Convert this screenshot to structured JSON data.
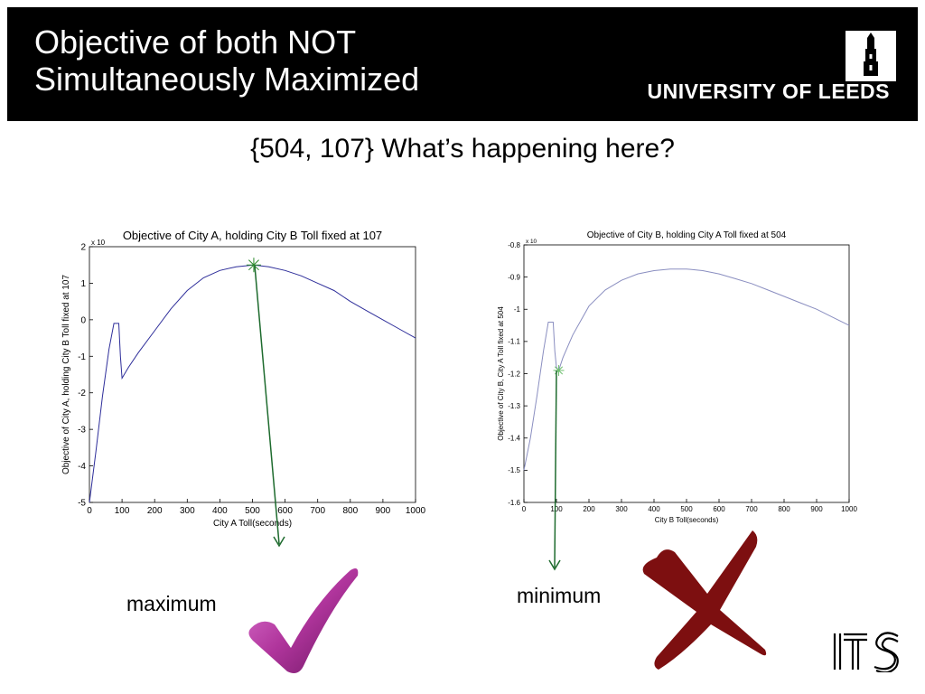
{
  "slide": {
    "title_line1": "Objective of both NOT",
    "title_line2": "Simultaneously Maximized",
    "logo_text": "UNIVERSITY OF LEEDS",
    "subtitle": "{504, 107} What’s happening here?",
    "label_left": "maximum",
    "label_right": "minimum",
    "its_logo": "ITS",
    "accent_arrow_color": "#1e6b2e",
    "check_color": "#b0359c",
    "cross_color": "#7d0f10"
  },
  "chart_data": [
    {
      "type": "line",
      "title": "Objective of City A, holding City B Toll fixed at 107",
      "xlabel": "City A Toll(seconds)",
      "ylabel": "Objective of City A, holding City B Toll fixed at 107",
      "exponent_label": "x 10",
      "xlim": [
        0,
        1000
      ],
      "ylim": [
        -5,
        2
      ],
      "xticks": [
        0,
        100,
        200,
        300,
        400,
        500,
        600,
        700,
        800,
        900,
        1000
      ],
      "yticks": [
        2,
        1,
        0,
        -1,
        -2,
        -3,
        -4,
        -5
      ],
      "line_color": "#2e2e9a",
      "marker": {
        "x": 504,
        "y": 1.5,
        "color": "#2a8a2a"
      },
      "x": [
        0,
        20,
        40,
        60,
        75,
        80,
        85,
        90,
        95,
        100,
        120,
        150,
        200,
        250,
        300,
        350,
        400,
        450,
        504,
        550,
        600,
        650,
        700,
        750,
        800,
        850,
        900,
        950,
        1000
      ],
      "y": [
        -5,
        -3.6,
        -2.1,
        -0.8,
        -0.1,
        -0.1,
        -0.1,
        -0.1,
        -1.0,
        -1.6,
        -1.3,
        -0.9,
        -0.3,
        0.3,
        0.8,
        1.15,
        1.35,
        1.45,
        1.5,
        1.45,
        1.35,
        1.2,
        1.0,
        0.8,
        0.5,
        0.25,
        0.0,
        -0.25,
        -0.5
      ]
    },
    {
      "type": "line",
      "title": "Objective of City B, holding City A Toll fixed at 504",
      "xlabel": "City B Toll(seconds)",
      "ylabel": "Objective of City B, City A Toll fixed at 504",
      "exponent_label": "x 10",
      "xlim": [
        0,
        1000
      ],
      "ylim": [
        -1.6,
        -0.8
      ],
      "xticks": [
        0,
        100,
        200,
        300,
        400,
        500,
        600,
        700,
        800,
        900,
        1000
      ],
      "yticks": [
        -0.8,
        -0.9,
        -1,
        -1.1,
        -1.2,
        -1.3,
        -1.4,
        -1.5,
        -1.6
      ],
      "line_color": "#8a8ec0",
      "marker": {
        "x": 107,
        "y": -1.19,
        "color": "#6fbf6f"
      },
      "x": [
        0,
        20,
        40,
        60,
        75,
        80,
        85,
        90,
        95,
        100,
        107,
        120,
        150,
        200,
        250,
        300,
        350,
        400,
        450,
        500,
        550,
        600,
        650,
        700,
        750,
        800,
        850,
        900,
        950,
        1000
      ],
      "y": [
        -1.5,
        -1.4,
        -1.27,
        -1.13,
        -1.04,
        -1.04,
        -1.04,
        -1.04,
        -1.13,
        -1.18,
        -1.19,
        -1.15,
        -1.08,
        -0.99,
        -0.94,
        -0.91,
        -0.89,
        -0.88,
        -0.875,
        -0.875,
        -0.88,
        -0.89,
        -0.905,
        -0.92,
        -0.94,
        -0.96,
        -0.98,
        -1.0,
        -1.025,
        -1.05
      ]
    }
  ]
}
